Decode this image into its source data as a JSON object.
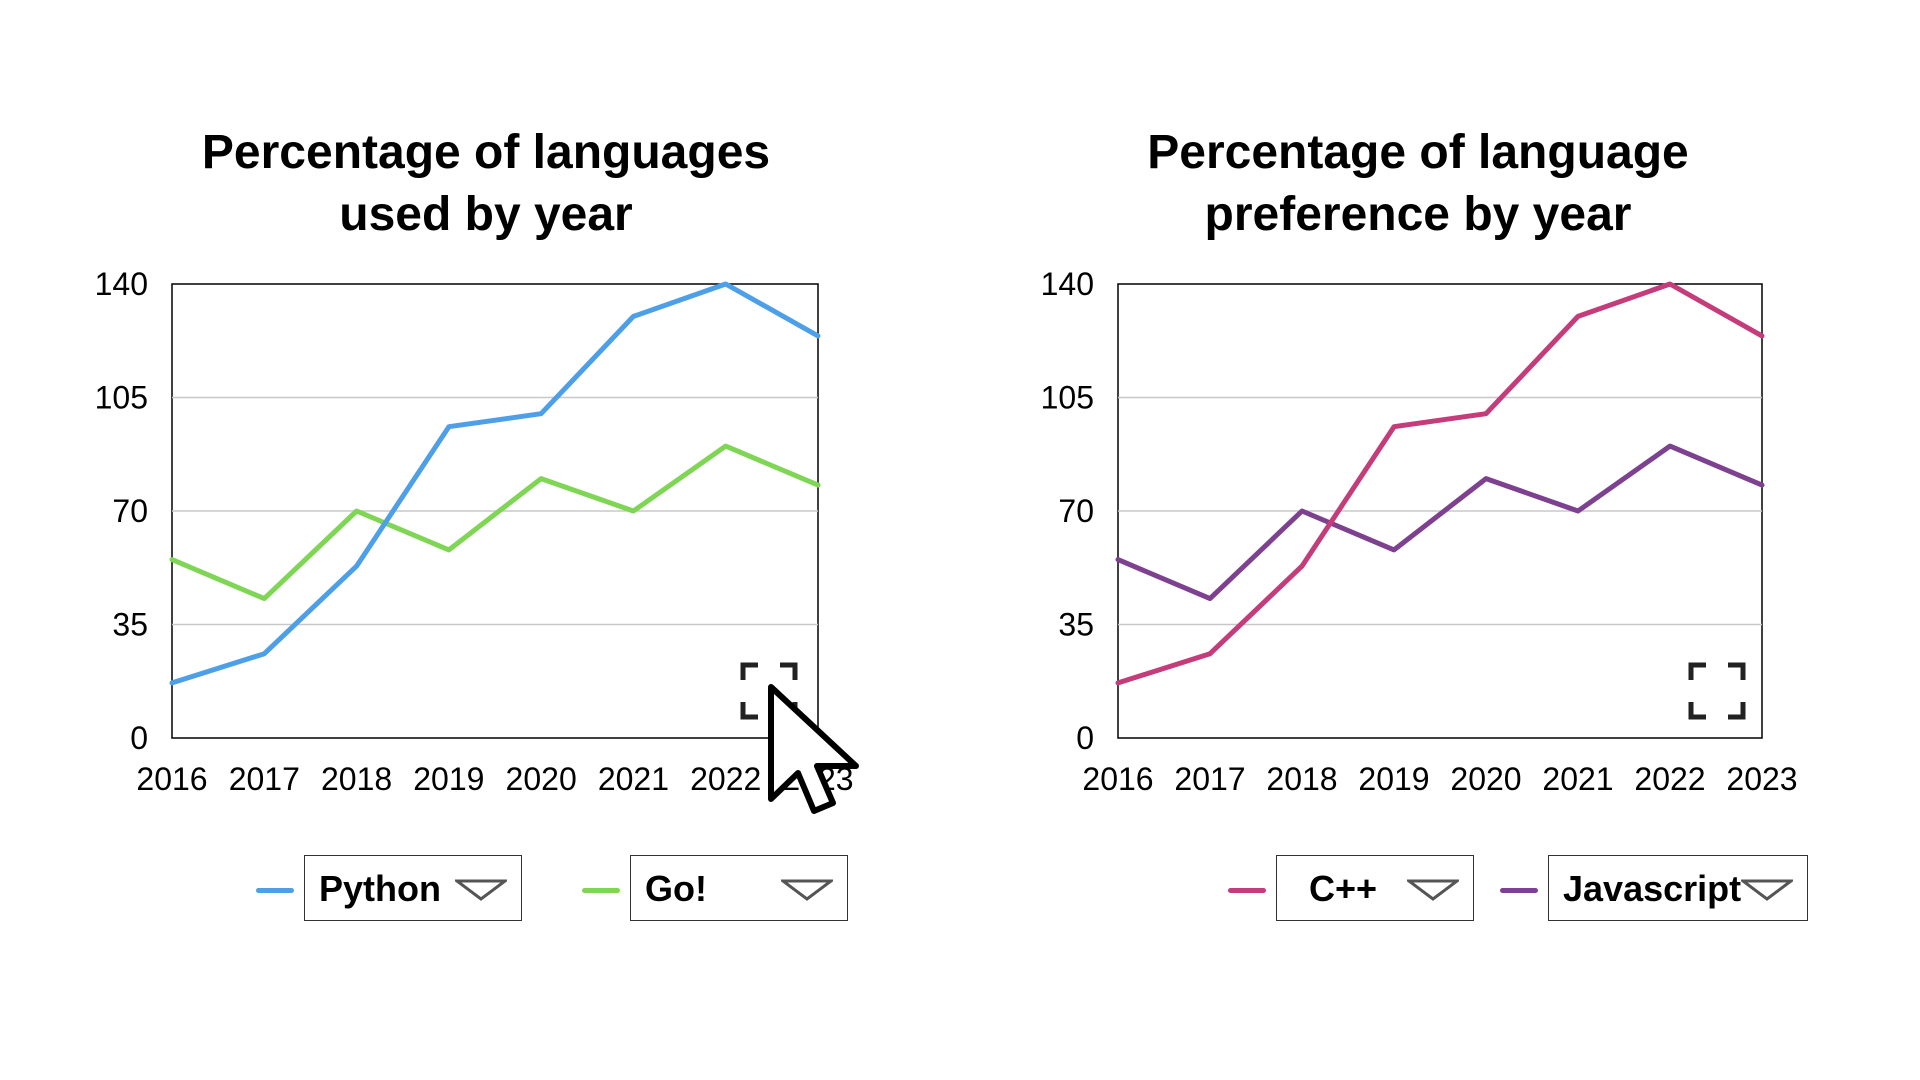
{
  "chart_data": [
    {
      "type": "line",
      "title": "Percentage of languages used by year",
      "title_lines": [
        "Percentage of languages",
        "used by year"
      ],
      "x": [
        "2016",
        "2017",
        "2018",
        "2019",
        "2020",
        "2021",
        "2022",
        "2023"
      ],
      "ylim": [
        0,
        140
      ],
      "yticks": [
        0,
        35,
        70,
        105,
        140
      ],
      "grid": true,
      "legend_position": "bottom",
      "series": [
        {
          "name": "Python",
          "color": "#4d9fe8",
          "values": [
            17,
            26,
            53,
            96,
            100,
            130,
            140,
            124
          ]
        },
        {
          "name": "Go!",
          "color": "#7fd655",
          "values": [
            55,
            43,
            70,
            58,
            80,
            70,
            90,
            78
          ]
        }
      ]
    },
    {
      "type": "line",
      "title": "Percentage of language preference by year",
      "title_lines": [
        "Percentage of language",
        "preference by year"
      ],
      "x": [
        "2016",
        "2017",
        "2018",
        "2019",
        "2020",
        "2021",
        "2022",
        "2023"
      ],
      "ylim": [
        0,
        140
      ],
      "yticks": [
        0,
        35,
        70,
        105,
        140
      ],
      "grid": true,
      "legend_position": "bottom",
      "series": [
        {
          "name": "C++",
          "color": "#c43c7a",
          "values": [
            17,
            26,
            53,
            96,
            100,
            130,
            140,
            124
          ]
        },
        {
          "name": "Javascript",
          "color": "#7e418f",
          "values": [
            55,
            43,
            70,
            58,
            80,
            70,
            90,
            78
          ]
        }
      ]
    }
  ],
  "icons": {
    "expand": "expand-icon",
    "dropdown": "triangle-down-icon",
    "cursor": "mouse-pointer-icon"
  }
}
